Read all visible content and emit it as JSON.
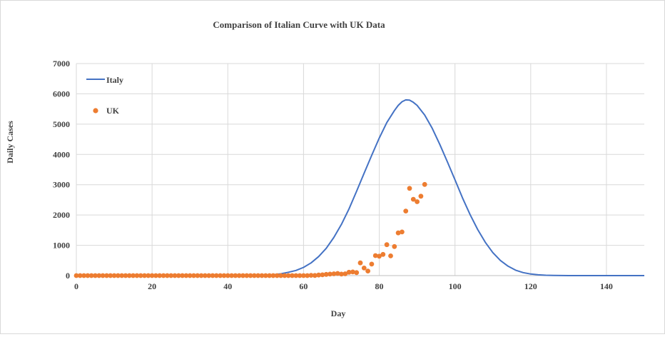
{
  "chart_data": {
    "type": "scatter",
    "title": "Comparison  of Italian Curve  with  UK  Data",
    "xlabel": "Day",
    "ylabel": "Daily Cases",
    "xlim": [
      0,
      150
    ],
    "ylim": [
      0,
      7000
    ],
    "x_ticks": [
      0,
      20,
      40,
      60,
      80,
      100,
      120,
      140
    ],
    "y_ticks": [
      0,
      1000,
      2000,
      3000,
      4000,
      5000,
      6000,
      7000
    ],
    "grid": true,
    "legend_position": "top-left",
    "series": [
      {
        "name": "Italy",
        "style": "line",
        "color": "#4472C4",
        "x": [
          0,
          5,
          10,
          15,
          20,
          25,
          30,
          35,
          40,
          45,
          48,
          50,
          52,
          54,
          56,
          58,
          60,
          62,
          64,
          66,
          68,
          70,
          72,
          74,
          76,
          78,
          80,
          82,
          84,
          85,
          86,
          87,
          88,
          89,
          90,
          92,
          94,
          96,
          98,
          100,
          102,
          104,
          106,
          108,
          110,
          112,
          114,
          116,
          118,
          120,
          122,
          124,
          126,
          130,
          140,
          150
        ],
        "y": [
          0,
          0,
          0,
          0,
          0,
          0,
          0,
          0,
          0,
          0,
          5,
          12,
          30,
          60,
          110,
          170,
          270,
          420,
          630,
          900,
          1260,
          1690,
          2200,
          2780,
          3380,
          3970,
          4540,
          5050,
          5450,
          5620,
          5740,
          5800,
          5790,
          5720,
          5620,
          5300,
          4860,
          4330,
          3750,
          3160,
          2560,
          2010,
          1520,
          1100,
          760,
          500,
          310,
          180,
          100,
          52,
          25,
          12,
          5,
          1,
          0,
          0
        ]
      },
      {
        "name": "UK",
        "style": "markers",
        "color": "#ED7D31",
        "x": [
          0,
          1,
          2,
          3,
          4,
          5,
          6,
          7,
          8,
          9,
          10,
          11,
          12,
          13,
          14,
          15,
          16,
          17,
          18,
          19,
          20,
          21,
          22,
          23,
          24,
          25,
          26,
          27,
          28,
          29,
          30,
          31,
          32,
          33,
          34,
          35,
          36,
          37,
          38,
          39,
          40,
          41,
          42,
          43,
          44,
          45,
          46,
          47,
          48,
          49,
          50,
          51,
          52,
          53,
          54,
          55,
          56,
          57,
          58,
          59,
          60,
          61,
          62,
          63,
          64,
          65,
          66,
          67,
          68,
          69,
          70,
          71,
          72,
          73,
          74,
          75,
          76,
          77,
          78,
          79,
          80,
          81,
          82,
          83,
          84,
          85,
          86,
          87,
          88,
          89,
          90,
          91,
          92
        ],
        "y": [
          0,
          0,
          0,
          0,
          0,
          0,
          0,
          0,
          0,
          0,
          0,
          0,
          0,
          0,
          0,
          0,
          0,
          0,
          0,
          0,
          0,
          0,
          0,
          0,
          0,
          0,
          0,
          0,
          0,
          0,
          0,
          0,
          0,
          0,
          0,
          0,
          0,
          0,
          0,
          0,
          0,
          0,
          0,
          0,
          0,
          0,
          0,
          0,
          0,
          0,
          0,
          0,
          0,
          0,
          0,
          0,
          0,
          0,
          0,
          0,
          0,
          0,
          10,
          5,
          20,
          25,
          40,
          50,
          60,
          70,
          50,
          60,
          110,
          120,
          100,
          420,
          250,
          150,
          380,
          660,
          640,
          700,
          1020,
          650,
          960,
          1410,
          1440,
          2130,
          2880,
          2520,
          2440,
          2620,
          3010
        ]
      }
    ]
  }
}
